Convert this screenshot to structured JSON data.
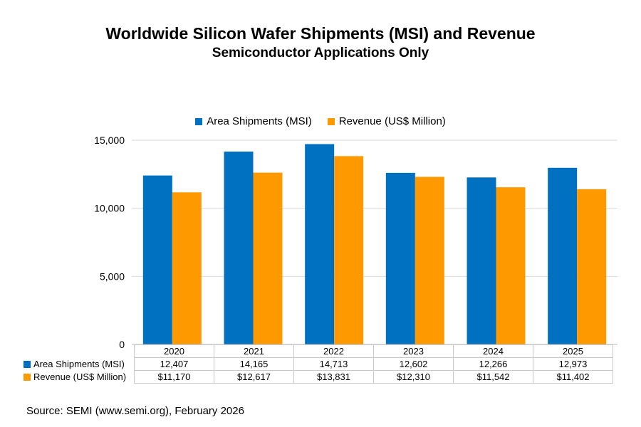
{
  "chart_data": {
    "type": "bar",
    "title": "Worldwide Silicon Wafer Shipments (MSI) and Revenue",
    "subtitle": "Semiconductor Applications Only",
    "categories": [
      "2020",
      "2021",
      "2022",
      "2023",
      "2024",
      "2025"
    ],
    "series": [
      {
        "name": "Area Shipments (MSI)",
        "color": "#0070C0",
        "values": [
          12407,
          14165,
          14713,
          12602,
          12266,
          12973
        ],
        "labels": [
          "12,407",
          "14,165",
          "14,713",
          "12,602",
          "12,266",
          "12,973"
        ]
      },
      {
        "name": "Revenue (US$ Million)",
        "color": "#FF9900",
        "values": [
          11170,
          12617,
          13831,
          12310,
          11542,
          11402
        ],
        "labels": [
          "$11,170",
          "$12,617",
          "$13,831",
          "$12,310",
          "$11,542",
          "$11,402"
        ]
      }
    ],
    "ylim": [
      0,
      15000
    ],
    "yticks": [
      0,
      5000,
      10000,
      15000
    ],
    "ytick_labels": [
      "0",
      "5,000",
      "10,000",
      "15,000"
    ],
    "grid": true,
    "legend": "top-center",
    "xlabel": "",
    "ylabel": ""
  },
  "source": "Source: SEMI (www.semi.org), February 2026"
}
